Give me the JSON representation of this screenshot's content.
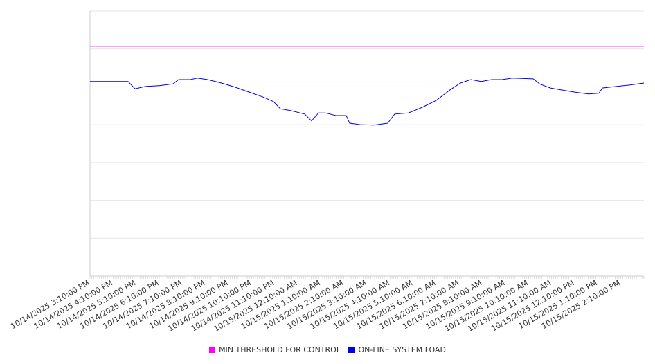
{
  "chart_data": {
    "type": "line",
    "title": "",
    "xlabel": "",
    "ylabel": "",
    "x_unit": "hours since 10/14/2025 3:10:00 PM",
    "xlim": [
      0,
      24
    ],
    "ylim": [
      0,
      7
    ],
    "grid": true,
    "legend_position": "bottom",
    "tick_labels": [
      "10/14/2025 3:10:00 PM",
      "10/14/2025 4:10:00 PM",
      "10/14/2025 5:10:00 PM",
      "10/14/2025 6:10:00 PM",
      "10/14/2025 7:10:00 PM",
      "10/14/2025 8:10:00 PM",
      "10/14/2025 9:10:00 PM",
      "10/14/2025 10:10:00 PM",
      "10/14/2025 11:10:00 PM",
      "10/15/2025 12:10:00 AM",
      "10/15/2025 1:10:00 AM",
      "10/15/2025 2:10:00 AM",
      "10/15/2025 3:10:00 AM",
      "10/15/2025 4:10:00 AM",
      "10/15/2025 5:10:00 AM",
      "10/15/2025 6:10:00 AM",
      "10/15/2025 7:10:00 AM",
      "10/15/2025 8:10:00 AM",
      "10/15/2025 9:10:00 AM",
      "10/15/2025 10:10:00 AM",
      "10/15/2025 11:10:00 AM",
      "10/15/2025 12:10:00 PM",
      "10/15/2025 1:10:00 PM",
      "10/15/2025 2:10:00 PM"
    ],
    "series": [
      {
        "name": "MIN THRESHOLD FOR CONTROL",
        "color": "#ff00ff",
        "points": [
          [
            0,
            6.07
          ],
          [
            24,
            6.07
          ]
        ]
      },
      {
        "name": "ON-LINE SYSTEM LOAD",
        "color": "#0000ee",
        "points": [
          [
            0,
            5.14
          ],
          [
            0.6,
            5.14
          ],
          [
            1.2,
            5.14
          ],
          [
            1.65,
            5.14
          ],
          [
            1.95,
            4.95
          ],
          [
            2.4,
            5.01
          ],
          [
            3.0,
            5.03
          ],
          [
            3.6,
            5.08
          ],
          [
            3.84,
            5.19
          ],
          [
            4.35,
            5.19
          ],
          [
            4.65,
            5.23
          ],
          [
            5.1,
            5.19
          ],
          [
            5.7,
            5.1
          ],
          [
            6.3,
            4.99
          ],
          [
            6.9,
            4.86
          ],
          [
            7.5,
            4.73
          ],
          [
            7.95,
            4.61
          ],
          [
            8.25,
            4.42
          ],
          [
            8.7,
            4.37
          ],
          [
            9.3,
            4.28
          ],
          [
            9.6,
            4.1
          ],
          [
            9.9,
            4.31
          ],
          [
            10.2,
            4.31
          ],
          [
            10.65,
            4.24
          ],
          [
            11.1,
            4.24
          ],
          [
            11.25,
            4.04
          ],
          [
            11.7,
            4.0
          ],
          [
            12.3,
            3.99
          ],
          [
            12.9,
            4.04
          ],
          [
            13.2,
            4.28
          ],
          [
            13.8,
            4.31
          ],
          [
            14.4,
            4.46
          ],
          [
            15.0,
            4.64
          ],
          [
            15.6,
            4.92
          ],
          [
            16.05,
            5.1
          ],
          [
            16.5,
            5.19
          ],
          [
            16.95,
            5.14
          ],
          [
            17.4,
            5.19
          ],
          [
            17.85,
            5.19
          ],
          [
            18.3,
            5.23
          ],
          [
            19.2,
            5.21
          ],
          [
            19.5,
            5.07
          ],
          [
            19.95,
            4.97
          ],
          [
            20.4,
            4.92
          ],
          [
            21.0,
            4.86
          ],
          [
            21.6,
            4.81
          ],
          [
            22.05,
            4.83
          ],
          [
            22.2,
            4.97
          ],
          [
            22.8,
            5.01
          ],
          [
            23.4,
            5.05
          ],
          [
            24.0,
            5.1
          ]
        ]
      }
    ]
  }
}
